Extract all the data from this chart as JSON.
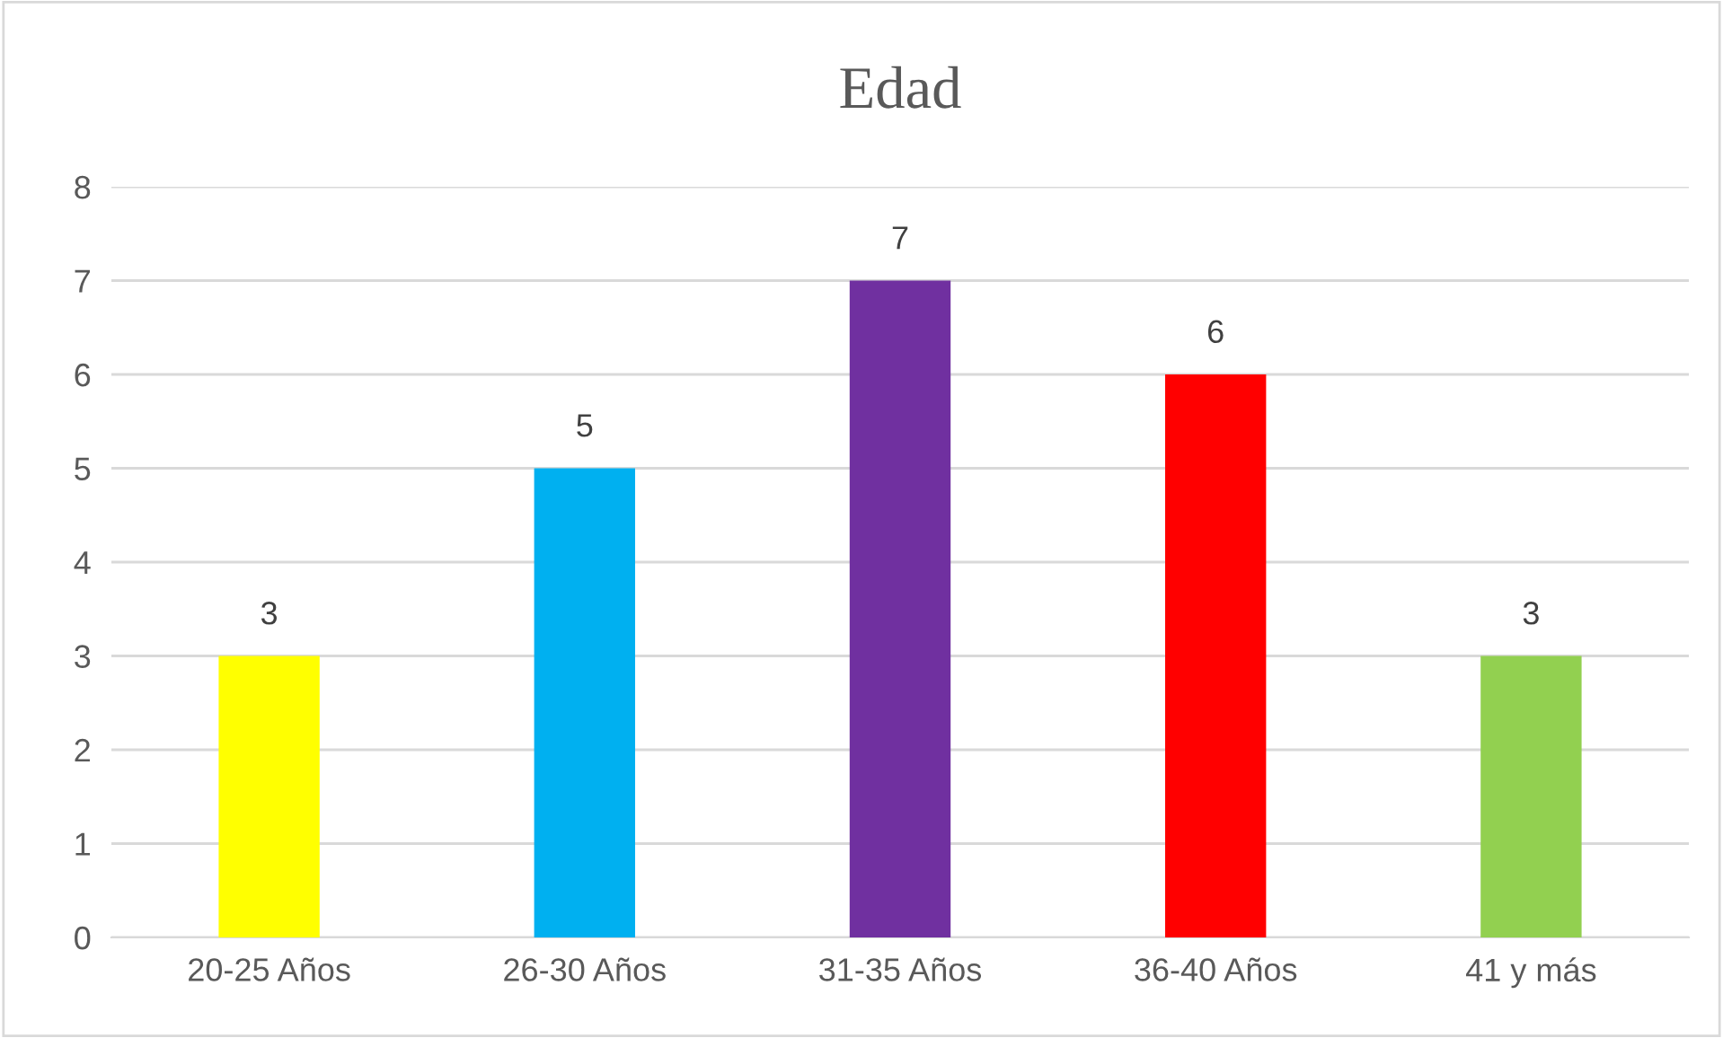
{
  "chart_data": {
    "type": "bar",
    "title": "Edad",
    "categories": [
      "20-25 Años",
      "26-30 Años",
      "31-35 Años",
      "36-40 Años",
      "41 y más"
    ],
    "values": [
      3,
      5,
      7,
      6,
      3
    ],
    "colors": [
      "#ffff00",
      "#00b0f0",
      "#7030a0",
      "#ff0000",
      "#92d050"
    ],
    "ylim": [
      0,
      8
    ],
    "yticks": [
      0,
      1,
      2,
      3,
      4,
      5,
      6,
      7,
      8
    ],
    "grid": "y",
    "data_labels": true,
    "legend": false
  }
}
